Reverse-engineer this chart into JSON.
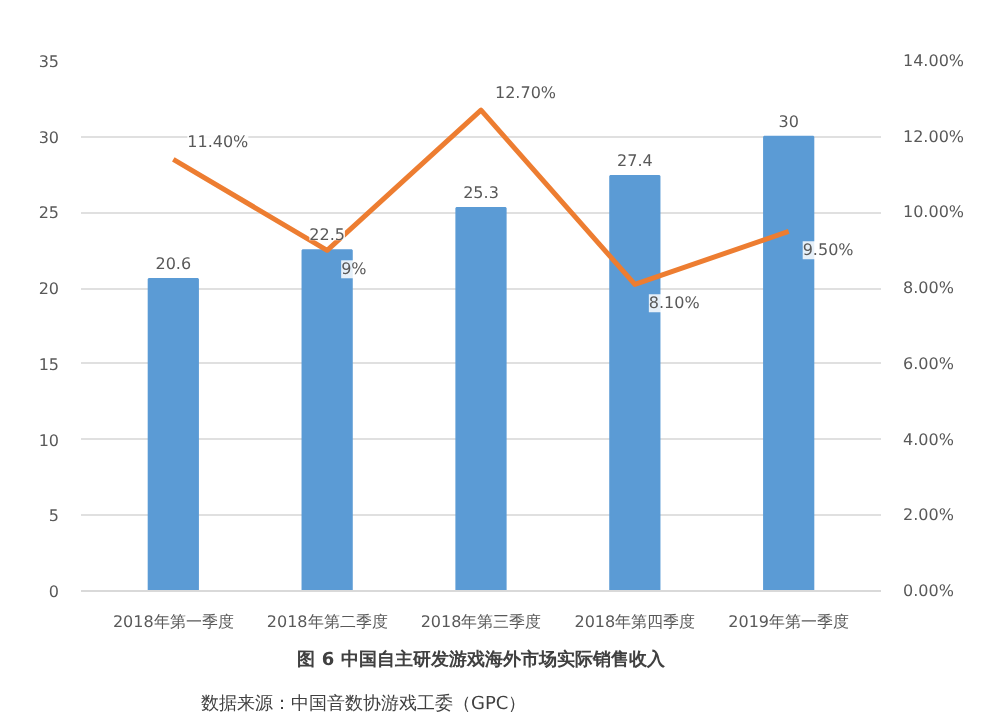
{
  "chart_data": {
    "type": "bar",
    "title": "图 6 中国自主研发游戏海外市场实际销售收入",
    "annotations": [
      "数据来源：中国音数协游戏工委（GPC）"
    ],
    "categories": [
      "2018年第一季度",
      "2018年第二季度",
      "2018年第三季度",
      "2018年第四季度",
      "2019年第一季度"
    ],
    "series": [
      {
        "color": "#5b9bd5",
        "values": [
          20.6,
          22.5,
          25.3,
          27.4,
          30
        ],
        "value_labels": [
          "20.6",
          "22.5",
          "25.3",
          "27.4",
          "30"
        ]
      },
      {
        "type": "line",
        "axis": "y2",
        "color": "#ed7d31",
        "values": [
          11.4,
          9,
          12.7,
          8.1,
          9.5
        ],
        "value_labels": [
          "11.40%",
          "9%",
          "12.70%",
          "8.10%",
          "9.50%"
        ]
      }
    ],
    "ylim": [
      0,
      35
    ],
    "yticks": [
      0,
      5,
      10,
      15,
      20,
      25,
      30,
      35
    ],
    "y2lim": [
      0,
      14
    ],
    "y2ticks": [
      {
        "value": 0,
        "label": "0.00%"
      },
      {
        "value": 2,
        "label": "2.00%"
      },
      {
        "value": 4,
        "label": "4.00%"
      },
      {
        "value": 6,
        "label": "6.00%"
      },
      {
        "value": 8,
        "label": "8.00%"
      },
      {
        "value": 10,
        "label": "10.00%"
      },
      {
        "value": 12,
        "label": "12.00%"
      },
      {
        "value": 14,
        "label": "14.00%"
      }
    ],
    "grid": "y"
  }
}
